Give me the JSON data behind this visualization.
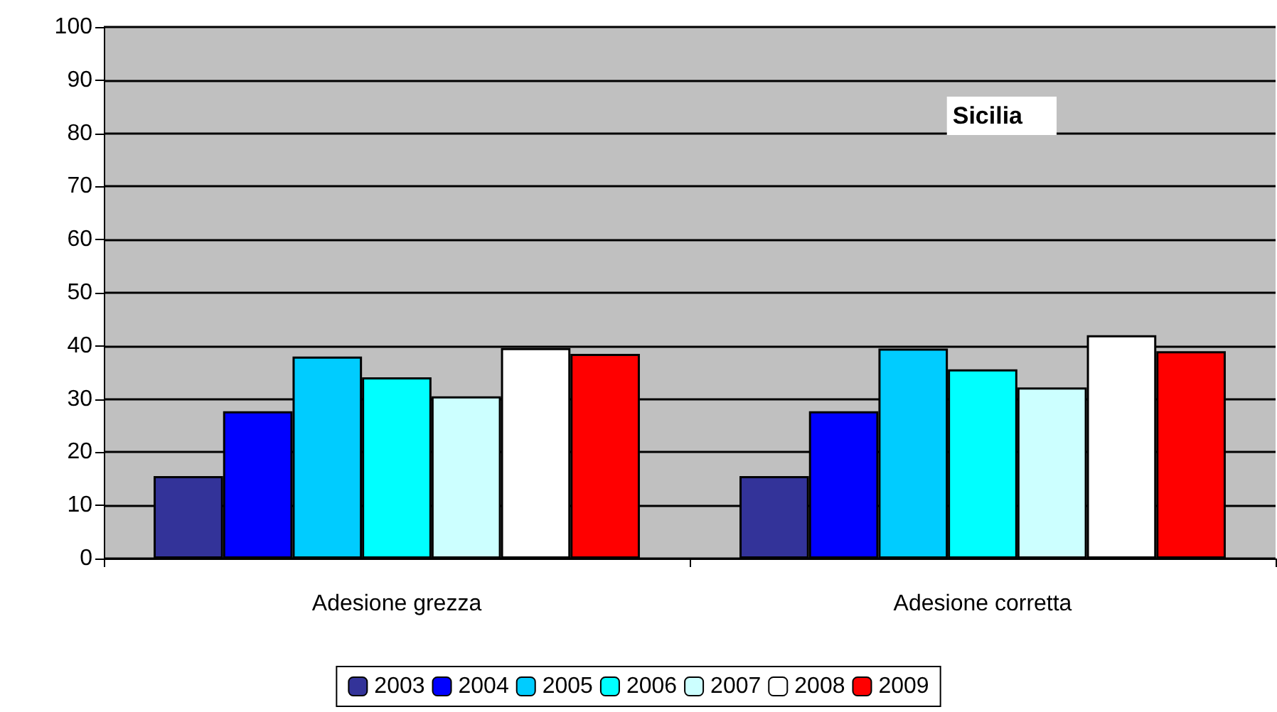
{
  "chart_data": {
    "type": "bar",
    "categories": [
      "Adesione grezza",
      "Adesione corretta"
    ],
    "series": [
      {
        "name": "2003",
        "color": "#333399",
        "values": [
          15.5,
          15.5
        ]
      },
      {
        "name": "2004",
        "color": "#0000ff",
        "values": [
          27.7,
          27.7
        ]
      },
      {
        "name": "2005",
        "color": "#00ccff",
        "values": [
          38.0,
          39.5
        ]
      },
      {
        "name": "2006",
        "color": "#00ffff",
        "values": [
          34.1,
          35.6
        ]
      },
      {
        "name": "2007",
        "color": "#ccffff",
        "values": [
          30.5,
          32.2
        ]
      },
      {
        "name": "2008",
        "color": "#ffffff",
        "values": [
          39.6,
          42.0
        ]
      },
      {
        "name": "2009",
        "color": "#ff0000",
        "values": [
          38.5,
          39.0
        ]
      }
    ],
    "ylim": [
      0,
      100
    ],
    "yticks": [
      0,
      10,
      20,
      30,
      40,
      50,
      60,
      70,
      80,
      90,
      100
    ],
    "grid": "y",
    "legend": "bottom",
    "annotations": [
      "Sicilia"
    ]
  }
}
